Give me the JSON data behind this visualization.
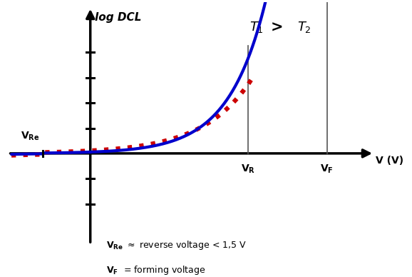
{
  "background_color": "#ffffff",
  "curve_blue_color": "#0000cc",
  "curve_red_color": "#cc0000",
  "axis_color": "#000000",
  "tick_color": "#000000",
  "vline_color": "#555555",
  "x_VRe": -1.5,
  "x_VR": 5.0,
  "x_VF": 7.5,
  "x_min": -2.5,
  "x_max": 9.0,
  "y_min": -3.5,
  "y_max": 5.5,
  "y_axis_x": 0.0,
  "x_axis_y": 0.0,
  "ytick_positions": [
    -2.0,
    -1.0,
    0.0,
    1.0,
    2.0,
    3.0,
    4.0
  ],
  "fig_width": 5.78,
  "fig_height": 3.88,
  "dpi": 100
}
